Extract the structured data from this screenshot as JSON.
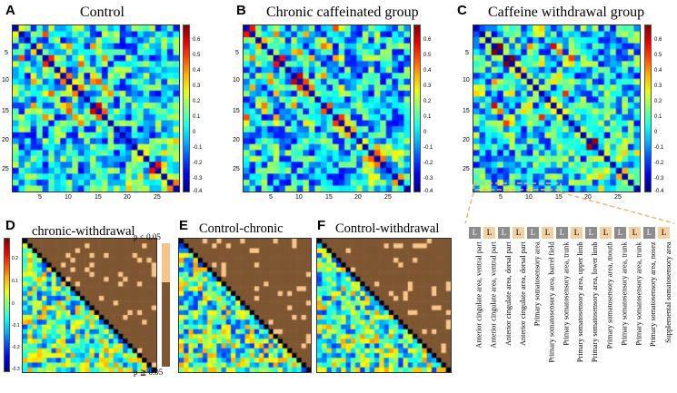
{
  "panels": {
    "A": {
      "letter": "A",
      "title": "Control",
      "seed": 11
    },
    "B": {
      "letter": "B",
      "title": "Chronic caffeinated group",
      "seed": 23
    },
    "C": {
      "letter": "C",
      "title": "Caffeine withdrawal group",
      "seed": 37
    },
    "D": {
      "letter": "D",
      "title": "chronic-withdrawal",
      "seed": 51
    },
    "E": {
      "letter": "E",
      "title": "Control-chronic",
      "seed": 67
    },
    "F": {
      "letter": "F",
      "title": "Control-withdrawal",
      "seed": 83
    }
  },
  "matrix_ticks": [
    "5",
    "10",
    "15",
    "20",
    "25"
  ],
  "top_colorbar_ticks": [
    "0.6",
    "0.5",
    "0.4",
    "0.3",
    "0.2",
    "0.1",
    "0",
    "-0.1",
    "-0.2",
    "-0.3",
    "-0.4"
  ],
  "bottom_colorbar_ticks": [
    "0.2",
    "0.1",
    "0",
    "-0.1",
    "-0.2",
    "-0.3"
  ],
  "p_labels": {
    "sig": "p < 0.05",
    "nonsig": "p ≧ 0.05"
  },
  "colors": {
    "sig": "#f7c48a",
    "nonsig": "#7e5631",
    "legend_gray": "#8c8c8c",
    "legend_peach": "#f3cfa4",
    "dash_orange": "#f0b76a"
  },
  "legend": {
    "L_text": "L",
    "areas": [
      "Anterior cingulate area, ventral part",
      "Anterior cingulate area, ventral part",
      "Anterior cingulate area, dorsal part",
      "Anterior cingulate area, dorsal part",
      "Primary somatosensory area",
      "Primary somatosensory area, barrel field",
      "Primary somatosensory area, trunk",
      "Primary somatosensory area, upper limb",
      "Primary somatosensory area, lower limb",
      "Primary somatosensory area, mouth",
      "Primary somatosensory area, trunk",
      "Primary somatosensory area, trunk",
      "Primary somatosensory area, nosez",
      "Supplemental somatosensory area"
    ]
  }
}
